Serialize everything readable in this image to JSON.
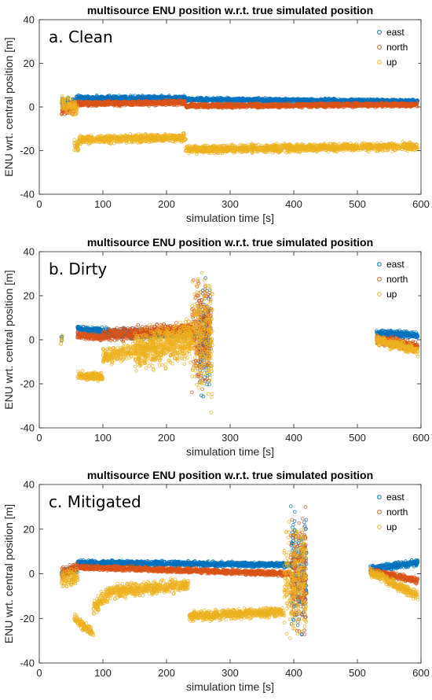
{
  "chart_data": [
    {
      "type": "scatter",
      "panel_label": "a. Clean",
      "title": "multisource ENU position w.r.t. true simulated position",
      "xlabel": "simulation time [s]",
      "ylabel": "ENU wrt. central position [m]",
      "xlim": [
        0,
        600
      ],
      "ylim": [
        -40,
        40
      ],
      "xticks": [
        "0",
        "100",
        "200",
        "300",
        "400",
        "500",
        "600"
      ],
      "yticks": [
        "40",
        "20",
        "0",
        "-20",
        "-40"
      ],
      "legend_position": "top-right",
      "series": [
        {
          "name": "east",
          "color": "#0072BD",
          "segments": [
            {
              "x0": 35,
              "x1": 58,
              "y0": 2,
              "y1": 2,
              "spread": 3
            },
            {
              "x0": 58,
              "x1": 230,
              "y0": 4,
              "y1": 4,
              "spread": 1.5
            },
            {
              "x0": 230,
              "x1": 595,
              "y0": 3.5,
              "y1": 2.5,
              "spread": 1.2
            }
          ]
        },
        {
          "name": "north",
          "color": "#D95319",
          "segments": [
            {
              "x0": 35,
              "x1": 58,
              "y0": -2,
              "y1": 0,
              "spread": 3.5
            },
            {
              "x0": 58,
              "x1": 230,
              "y0": 1.5,
              "y1": 2,
              "spread": 1.5
            },
            {
              "x0": 230,
              "x1": 595,
              "y0": 0.5,
              "y1": 1,
              "spread": 1.3
            }
          ]
        },
        {
          "name": "up",
          "color": "#EDB120",
          "segments": [
            {
              "x0": 35,
              "x1": 60,
              "y0": 2,
              "y1": -1,
              "spread": 5
            },
            {
              "x0": 55,
              "x1": 62,
              "y0": -18,
              "y1": -18,
              "spread": 4
            },
            {
              "x0": 62,
              "x1": 230,
              "y0": -15,
              "y1": -14,
              "spread": 2.5
            },
            {
              "x0": 230,
              "x1": 595,
              "y0": -19.5,
              "y1": -18,
              "spread": 2.5
            }
          ]
        }
      ]
    },
    {
      "type": "scatter",
      "panel_label": "b. Dirty",
      "title": "multisource ENU position w.r.t. true simulated position",
      "xlabel": "simulation time [s]",
      "ylabel": "ENU wrt. central position [m]",
      "xlim": [
        0,
        600
      ],
      "ylim": [
        -40,
        40
      ],
      "xticks": [
        "0",
        "100",
        "200",
        "300",
        "400",
        "500",
        "600"
      ],
      "yticks": [
        "40",
        "20",
        "0",
        "-20",
        "-40"
      ],
      "legend_position": "top-right",
      "series": [
        {
          "name": "east",
          "color": "#0072BD",
          "segments": [
            {
              "x0": 34,
              "x1": 36,
              "y0": 0,
              "y1": 0,
              "spread": 3
            },
            {
              "x0": 60,
              "x1": 100,
              "y0": 5,
              "y1": 4,
              "spread": 2
            },
            {
              "x0": 100,
              "x1": 250,
              "y0": 3,
              "y1": 3,
              "spread": 3
            },
            {
              "x0": 250,
              "x1": 270,
              "y0": 0,
              "y1": 0,
              "spread": 30
            },
            {
              "x0": 530,
              "x1": 595,
              "y0": 3,
              "y1": 2,
              "spread": 2
            }
          ]
        },
        {
          "name": "north",
          "color": "#D95319",
          "segments": [
            {
              "x0": 60,
              "x1": 100,
              "y0": 2,
              "y1": 1,
              "spread": 2
            },
            {
              "x0": 100,
              "x1": 240,
              "y0": 2,
              "y1": 5,
              "spread": 4
            },
            {
              "x0": 240,
              "x1": 270,
              "y0": 3,
              "y1": 3,
              "spread": 30
            },
            {
              "x0": 530,
              "x1": 595,
              "y0": 0,
              "y1": -3,
              "spread": 3
            }
          ]
        },
        {
          "name": "up",
          "color": "#EDB120",
          "segments": [
            {
              "x0": 34,
              "x1": 36,
              "y0": 0,
              "y1": 0,
              "spread": 3
            },
            {
              "x0": 60,
              "x1": 100,
              "y0": -16,
              "y1": -17,
              "spread": 2.5
            },
            {
              "x0": 100,
              "x1": 150,
              "y0": -8,
              "y1": -5,
              "spread": 5
            },
            {
              "x0": 150,
              "x1": 240,
              "y0": -5,
              "y1": 0,
              "spread": 12
            },
            {
              "x0": 240,
              "x1": 272,
              "y0": 0,
              "y1": 0,
              "spread": 35
            },
            {
              "x0": 530,
              "x1": 595,
              "y0": 0,
              "y1": -5,
              "spread": 3
            }
          ]
        }
      ]
    },
    {
      "type": "scatter",
      "panel_label": "c. Mitigated",
      "title": "multisource ENU position w.r.t. true simulated position",
      "xlabel": "simulation time [s]",
      "ylabel": "ENU wrt. central position [m]",
      "xlim": [
        0,
        600
      ],
      "ylim": [
        -40,
        40
      ],
      "xticks": [
        "0",
        "100",
        "200",
        "300",
        "400",
        "500",
        "600"
      ],
      "yticks": [
        "40",
        "20",
        "0",
        "-20",
        "-40"
      ],
      "legend_position": "top-right",
      "series": [
        {
          "name": "east",
          "color": "#0072BD",
          "segments": [
            {
              "x0": 35,
              "x1": 60,
              "y0": 0,
              "y1": 2,
              "spread": 3
            },
            {
              "x0": 60,
              "x1": 395,
              "y0": 5,
              "y1": 4,
              "spread": 1.5
            },
            {
              "x0": 395,
              "x1": 420,
              "y0": 0,
              "y1": 0,
              "spread": 35
            },
            {
              "x0": 520,
              "x1": 595,
              "y0": 2,
              "y1": 5,
              "spread": 2
            }
          ]
        },
        {
          "name": "north",
          "color": "#D95319",
          "segments": [
            {
              "x0": 35,
              "x1": 60,
              "y0": 0,
              "y1": 3,
              "spread": 3
            },
            {
              "x0": 60,
              "x1": 395,
              "y0": 3,
              "y1": 0,
              "spread": 1.5
            },
            {
              "x0": 395,
              "x1": 420,
              "y0": 0,
              "y1": 0,
              "spread": 35
            },
            {
              "x0": 520,
              "x1": 595,
              "y0": 1,
              "y1": -3,
              "spread": 2
            }
          ]
        },
        {
          "name": "up",
          "color": "#EDB120",
          "segments": [
            {
              "x0": 35,
              "x1": 60,
              "y0": -2,
              "y1": -2,
              "spread": 5
            },
            {
              "x0": 55,
              "x1": 85,
              "y0": -20,
              "y1": -27,
              "spread": 3
            },
            {
              "x0": 85,
              "x1": 110,
              "y0": -15,
              "y1": -9,
              "spread": 5
            },
            {
              "x0": 110,
              "x1": 235,
              "y0": -8,
              "y1": -5,
              "spread": 4
            },
            {
              "x0": 235,
              "x1": 385,
              "y0": -19,
              "y1": -17,
              "spread": 3
            },
            {
              "x0": 385,
              "x1": 420,
              "y0": -5,
              "y1": 0,
              "spread": 35
            },
            {
              "x0": 520,
              "x1": 595,
              "y0": 1,
              "y1": -10,
              "spread": 3
            }
          ]
        }
      ]
    }
  ]
}
